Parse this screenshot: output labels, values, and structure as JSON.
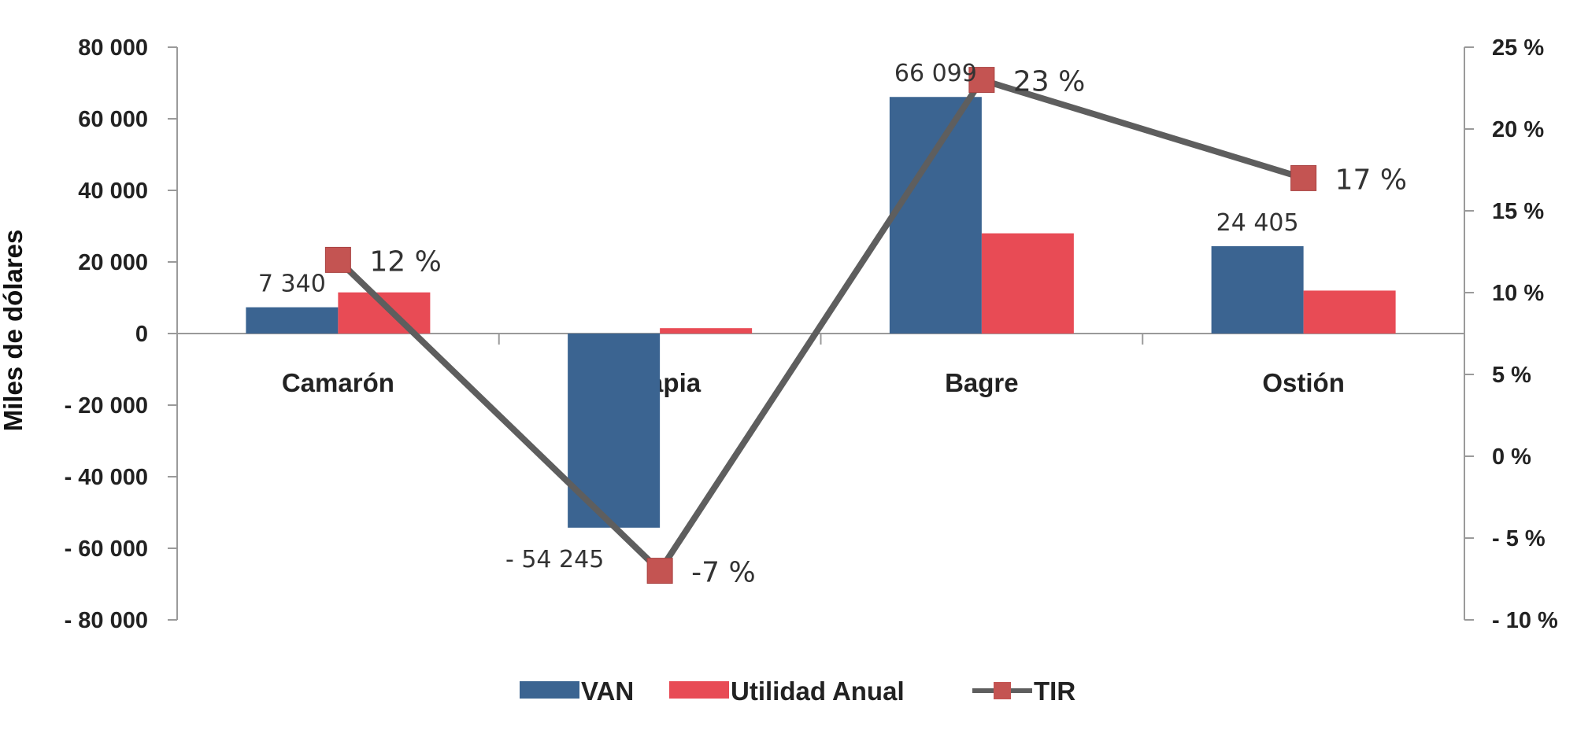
{
  "chart_data": {
    "type": "bar",
    "ylabel": "Miles de dólares",
    "categories": [
      "Camarón",
      "Tilapia",
      "Bagre",
      "Ostión"
    ],
    "series": [
      {
        "name": "VAN",
        "kind": "bar",
        "axis": "left",
        "color": "#3B6491",
        "values": [
          7340,
          -54245,
          66099,
          24405
        ]
      },
      {
        "name": "Utilidad Anual",
        "kind": "bar",
        "axis": "left",
        "color": "#E84B55",
        "values": [
          11500,
          1500,
          28000,
          12000
        ]
      },
      {
        "name": "TIR",
        "kind": "line",
        "axis": "right",
        "color": "#5E5E5E",
        "marker_color": "#C45452",
        "values": [
          12,
          -7,
          23,
          17
        ]
      }
    ],
    "data_labels": {
      "VAN": [
        "7 340",
        "- 54 245",
        "66 099",
        "24 405"
      ],
      "TIR": [
        "12 %",
        "-7 %",
        "23 %",
        "17 %"
      ]
    },
    "y_left": {
      "range": [
        -80000,
        80000
      ],
      "ticks": [
        80000,
        60000,
        40000,
        20000,
        0,
        -20000,
        -40000,
        -60000,
        -80000
      ],
      "tick_labels": [
        "80 000",
        "60 000",
        "40 000",
        "20 000",
        "0",
        "- 20 000",
        "- 40 000",
        "- 60 000",
        "- 80 000"
      ]
    },
    "y_right": {
      "range": [
        -10,
        25
      ],
      "ticks": [
        25,
        20,
        15,
        10,
        5,
        0,
        -5,
        -10
      ],
      "tick_labels": [
        "25 %",
        "20 %",
        "15 %",
        "10 %",
        "5 %",
        "0 %",
        "- 5 %",
        "- 10 %"
      ]
    },
    "legend": {
      "position": "bottom",
      "items": [
        "VAN",
        "Utilidad Anual",
        "TIR"
      ]
    },
    "grid": false
  }
}
